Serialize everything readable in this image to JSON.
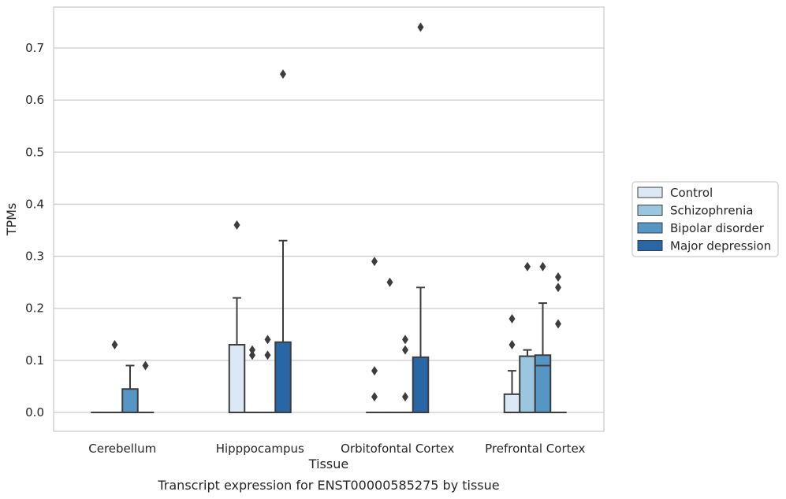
{
  "chart_data": {
    "type": "box",
    "xlabel": "Tissue",
    "ylabel": "TPMs",
    "caption": "Transcript expression for ENST00000585275 by tissue",
    "ylim": [
      -0.037,
      0.78
    ],
    "yticks": [
      0.0,
      0.1,
      0.2,
      0.3,
      0.4,
      0.5,
      0.6,
      0.7
    ],
    "ytick_labels": [
      "0.0",
      "0.1",
      "0.2",
      "0.3",
      "0.4",
      "0.5",
      "0.6",
      "0.7"
    ],
    "grid": true,
    "legend_placement": "right",
    "categories": [
      "Cerebellum",
      "Hipppocampus",
      "Orbitofontal Cortex",
      "Prefrontal Cortex"
    ],
    "series": [
      {
        "name": "Control",
        "color": "#dbe8f5",
        "boxes": [
          {
            "q1": 0.0,
            "median": 0.0,
            "q3": 0.0,
            "whisker_low": 0.0,
            "whisker_high": 0.0,
            "outliers": []
          },
          {
            "q1": 0.0,
            "median": 0.0,
            "q3": 0.13,
            "whisker_low": 0.0,
            "whisker_high": 0.22,
            "outliers": [
              0.36
            ]
          },
          {
            "q1": 0.0,
            "median": 0.0,
            "q3": 0.0,
            "whisker_low": 0.0,
            "whisker_high": 0.0,
            "outliers": [
              0.03,
              0.08,
              0.29
            ]
          },
          {
            "q1": 0.0,
            "median": 0.0,
            "q3": 0.035,
            "whisker_low": 0.0,
            "whisker_high": 0.08,
            "outliers": [
              0.13,
              0.18
            ]
          }
        ]
      },
      {
        "name": "Schizophrenia",
        "color": "#9ac6e0",
        "boxes": [
          {
            "q1": 0.0,
            "median": 0.0,
            "q3": 0.0,
            "whisker_low": 0.0,
            "whisker_high": 0.0,
            "outliers": [
              0.13
            ]
          },
          {
            "q1": 0.0,
            "median": 0.0,
            "q3": 0.0,
            "whisker_low": 0.0,
            "whisker_high": 0.0,
            "outliers": [
              0.11,
              0.12
            ]
          },
          {
            "q1": 0.0,
            "median": 0.0,
            "q3": 0.0,
            "whisker_low": 0.0,
            "whisker_high": 0.0,
            "outliers": [
              0.25
            ]
          },
          {
            "q1": 0.0,
            "median": 0.0,
            "q3": 0.108,
            "whisker_low": 0.0,
            "whisker_high": 0.12,
            "outliers": [
              0.28
            ]
          }
        ]
      },
      {
        "name": "Bipolar disorder",
        "color": "#5596c4",
        "boxes": [
          {
            "q1": 0.0,
            "median": 0.0,
            "q3": 0.045,
            "whisker_low": 0.0,
            "whisker_high": 0.09,
            "outliers": []
          },
          {
            "q1": 0.0,
            "median": 0.0,
            "q3": 0.0,
            "whisker_low": 0.0,
            "whisker_high": 0.0,
            "outliers": [
              0.11,
              0.14
            ]
          },
          {
            "q1": 0.0,
            "median": 0.0,
            "q3": 0.0,
            "whisker_low": 0.0,
            "whisker_high": 0.0,
            "outliers": [
              0.03,
              0.12,
              0.14
            ]
          },
          {
            "q1": 0.0,
            "median": 0.09,
            "q3": 0.11,
            "whisker_low": 0.0,
            "whisker_high": 0.21,
            "outliers": [
              0.28
            ]
          }
        ]
      },
      {
        "name": "Major depression",
        "color": "#2866a6",
        "boxes": [
          {
            "q1": 0.0,
            "median": 0.0,
            "q3": 0.0,
            "whisker_low": 0.0,
            "whisker_high": 0.0,
            "outliers": [
              0.09
            ]
          },
          {
            "q1": 0.0,
            "median": 0.0,
            "q3": 0.135,
            "whisker_low": 0.0,
            "whisker_high": 0.33,
            "outliers": [
              0.65
            ]
          },
          {
            "q1": 0.0,
            "median": 0.0,
            "q3": 0.106,
            "whisker_low": 0.0,
            "whisker_high": 0.24,
            "outliers": [
              0.74
            ]
          },
          {
            "q1": 0.0,
            "median": 0.0,
            "q3": 0.0,
            "whisker_low": 0.0,
            "whisker_high": 0.0,
            "outliers": [
              0.17,
              0.24,
              0.26
            ]
          }
        ]
      }
    ]
  }
}
